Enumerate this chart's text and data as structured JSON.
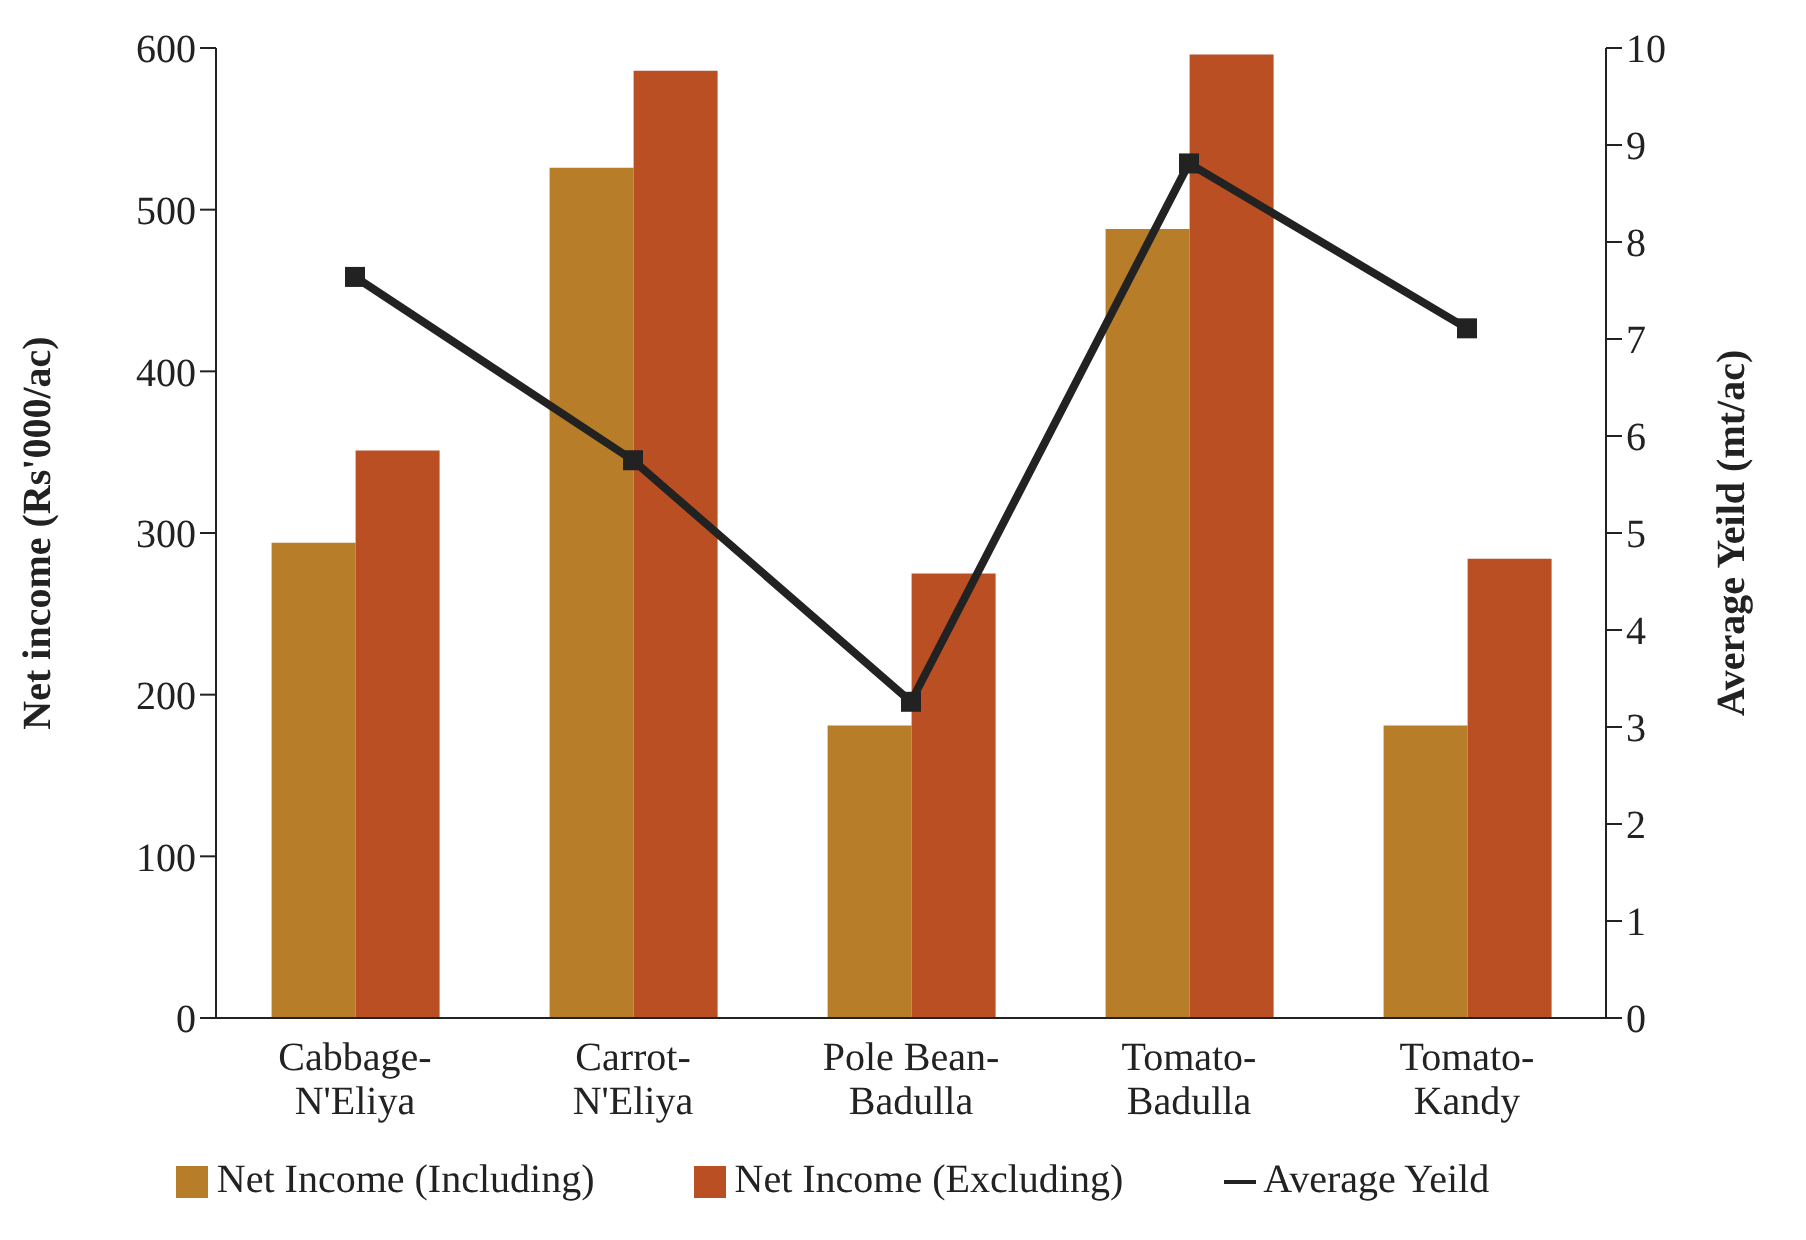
{
  "chart_data": {
    "type": "bar",
    "categories": [
      "Cabbage-N'Eliya",
      "Carrot-N'Eliya",
      "Pole Bean-Badulla",
      "Tomato-Badulla",
      "Tomato-Kandy"
    ],
    "series": [
      {
        "name": "Net Income (Including)",
        "color": "#b87d28",
        "values": [
          294,
          526,
          181,
          488,
          181
        ]
      },
      {
        "name": "Net Income (Excluding)",
        "color": "#b94f22",
        "values": [
          351,
          586,
          275,
          596,
          284
        ]
      },
      {
        "name": "Average Yeild",
        "type": "line",
        "axis": "y2",
        "color": "#222222",
        "values": [
          7.64,
          5.75,
          3.26,
          8.81,
          7.11
        ]
      }
    ],
    "ylabel": "Net income (Rs'000/ac)",
    "y2label": "Average Yeild (mt/ac)",
    "ylim": [
      0,
      600
    ],
    "yticks": [
      0,
      100,
      200,
      300,
      400,
      500,
      600
    ],
    "y2lim": [
      0,
      10
    ],
    "y2ticks": [
      0,
      1,
      2,
      3,
      4,
      5,
      6,
      7,
      8,
      9,
      10
    ],
    "grid": false,
    "legend": "bottom",
    "marker": "square",
    "line_style": "solid"
  }
}
